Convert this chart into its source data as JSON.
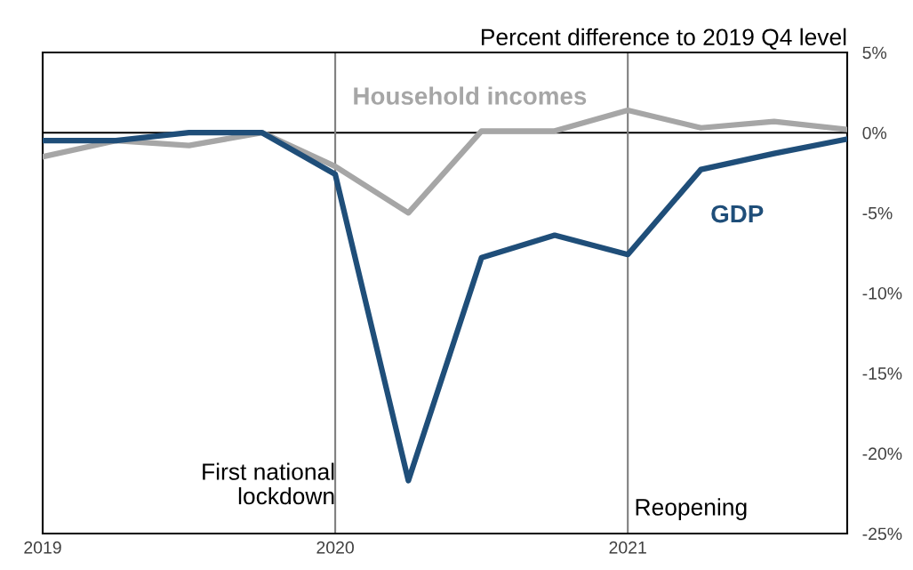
{
  "chart_data": {
    "type": "line",
    "ylabel": "Percent difference to 2019 Q4 level",
    "x": [
      2019,
      2019.25,
      2019.5,
      2019.75,
      2020,
      2020.25,
      2020.5,
      2020.75,
      2021,
      2021.25,
      2021.5,
      2021.75
    ],
    "series": [
      {
        "name": "Household incomes",
        "color": "#a6a6a6",
        "values": [
          -1.5,
          -0.5,
          -0.8,
          0,
          -2.1,
          -5.0,
          0.1,
          0.1,
          1.4,
          0.3,
          0.7,
          0.2
        ]
      },
      {
        "name": "GDP",
        "color": "#1f4e79",
        "values": [
          -0.5,
          -0.5,
          0,
          0,
          -2.6,
          -21.7,
          -7.8,
          -6.4,
          -7.6,
          -2.3,
          -1.3,
          -0.4
        ]
      }
    ],
    "xlim": [
      2019,
      2021.75
    ],
    "xticks": [
      2019,
      2020,
      2021
    ],
    "ylim": [
      -25,
      5
    ],
    "yticks": [
      {
        "value": 5,
        "label": "5%"
      },
      {
        "value": 0,
        "label": "0%"
      },
      {
        "value": -5,
        "label": "-5%"
      },
      {
        "value": -10,
        "label": "-10%"
      },
      {
        "value": -15,
        "label": "-15%"
      },
      {
        "value": -20,
        "label": "-20%"
      },
      {
        "value": -25,
        "label": "-25%"
      }
    ],
    "ref_lines": [
      {
        "axis": "y",
        "value": 0,
        "color": "#000000"
      },
      {
        "axis": "x",
        "value": 2020,
        "label": "First national\nlockdown",
        "color": "#7f7f7f"
      },
      {
        "axis": "x",
        "value": 2021,
        "label": "Reopening",
        "color": "#7f7f7f"
      }
    ],
    "grid": false,
    "legend": false,
    "marker": "none",
    "line_style": "solid"
  }
}
